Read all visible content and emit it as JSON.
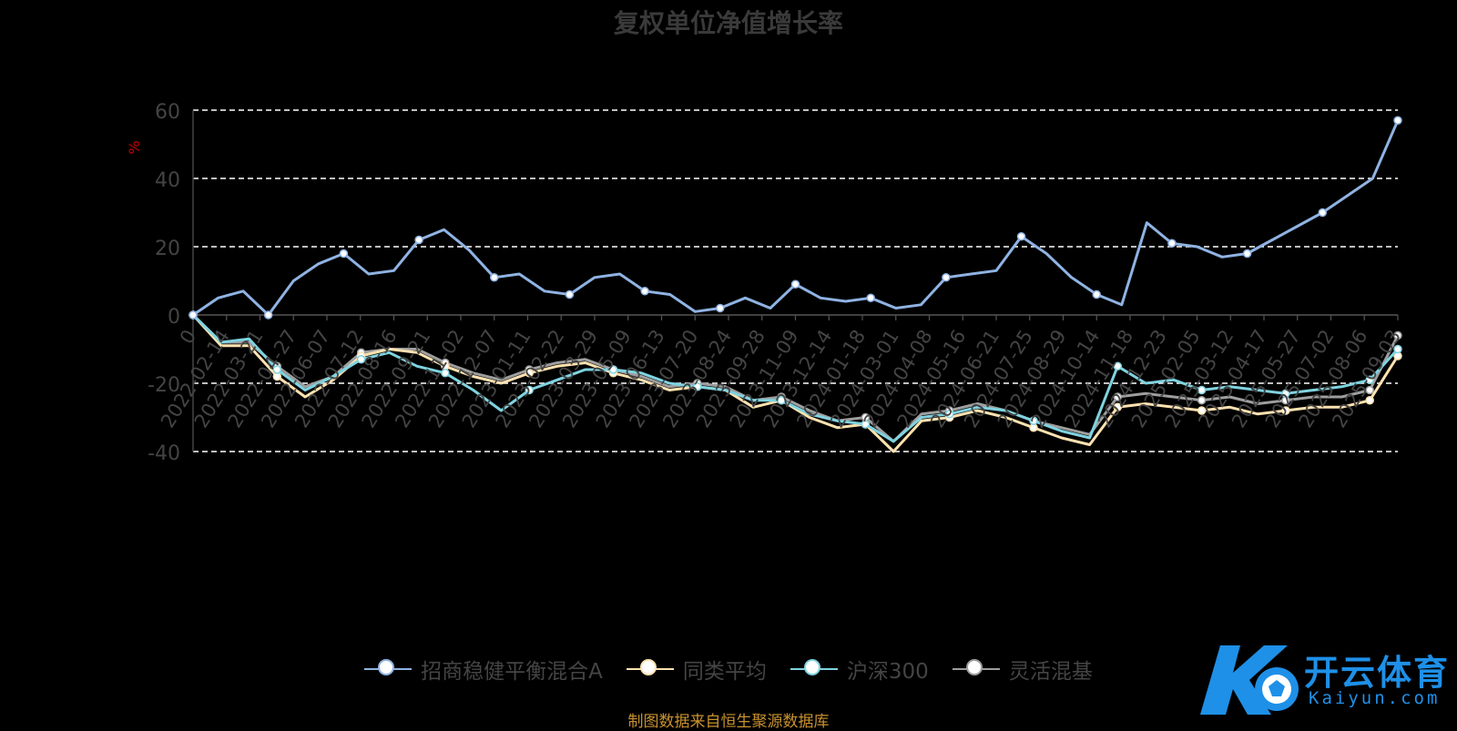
{
  "title": "复权单位净值增长率",
  "source_note": "制图数据来自恒生聚源数据库",
  "logo": {
    "text": "开云体育",
    "sub": "Kaiyun.com"
  },
  "colors": {
    "fund": "#8fb3e3",
    "peer_avg": "#ffe2b0",
    "hs300": "#7fd3e0",
    "flexible": "#9e9e9e",
    "axis_text": "#444444",
    "unit": "#cc0000"
  },
  "chart_data": {
    "type": "line",
    "title": "复权单位净值增长率",
    "ylabel": "%",
    "ylim": [
      -40,
      60
    ],
    "yticks": [
      -40,
      -20,
      0,
      20,
      40,
      60
    ],
    "grid": true,
    "legend_position": "bottom",
    "x_tick_labels": [
      "0",
      "2022-02-14",
      "2022-03-21",
      "2022-04-27",
      "2022-06-07",
      "2022-07-12",
      "2022-08-16",
      "2022-09-21",
      "2022-11-02",
      "2022-12-07",
      "2023-01-11",
      "2023-02-22",
      "2023-03-29",
      "2023-05-09",
      "2023-06-13",
      "2023-07-20",
      "2023-08-24",
      "2023-09-28",
      "2023-11-09",
      "2023-12-14",
      "2024-01-18",
      "2024-03-01",
      "2024-04-08",
      "2024-05-16",
      "2024-06-21",
      "2024-07-25",
      "2024-08-29",
      "2024-10-14",
      "2024-11-18",
      "2024-12-23",
      "2025-02-05",
      "2025-03-12",
      "2025-04-17",
      "2025-05-27",
      "2025-07-02",
      "2025-08-06",
      "2025-09-03"
    ],
    "series": [
      {
        "name": "招商稳健平衡混合A",
        "color_key": "fund",
        "values": [
          0,
          5,
          7,
          0,
          10,
          15,
          18,
          12,
          13,
          22,
          25,
          19,
          11,
          12,
          7,
          6,
          11,
          12,
          7,
          6,
          1,
          2,
          5,
          2,
          9,
          5,
          4,
          5,
          2,
          3,
          11,
          12,
          13,
          23,
          18,
          11,
          6,
          3,
          27,
          21,
          20,
          17,
          18,
          22,
          26,
          30,
          35,
          40,
          57
        ]
      },
      {
        "name": "同类平均",
        "color_key": "peer_avg",
        "values": [
          0,
          -9,
          -9,
          -18,
          -24,
          -19,
          -12,
          -10,
          -11,
          -15,
          -18,
          -20,
          -17,
          -15,
          -14,
          -17,
          -19,
          -22,
          -21,
          -22,
          -27,
          -25,
          -30,
          -33,
          -32,
          -40,
          -31,
          -30,
          -28,
          -30,
          -33,
          -36,
          -38,
          -27,
          -26,
          -27,
          -28,
          -27,
          -29,
          -28,
          -27,
          -27,
          -25,
          -12
        ]
      },
      {
        "name": "沪深300",
        "color_key": "hs300",
        "values": [
          0,
          -8,
          -7,
          -16,
          -22,
          -18,
          -13,
          -11,
          -15,
          -17,
          -22,
          -28,
          -22,
          -19,
          -16,
          -16,
          -17,
          -20,
          -21,
          -22,
          -25,
          -25,
          -29,
          -31,
          -32,
          -37,
          -30,
          -29,
          -27,
          -28,
          -31,
          -34,
          -36,
          -15,
          -20,
          -19,
          -22,
          -21,
          -22,
          -23,
          -22,
          -21,
          -19,
          -10
        ]
      },
      {
        "name": "灵活混基",
        "color_key": "flexible",
        "values": [
          0,
          -8,
          -8,
          -15,
          -21,
          -18,
          -11,
          -10,
          -10,
          -14,
          -17,
          -19,
          -16,
          -14,
          -13,
          -16,
          -18,
          -21,
          -20,
          -21,
          -25,
          -24,
          -28,
          -31,
          -30,
          -37,
          -29,
          -28,
          -26,
          -28,
          -31,
          -33,
          -35,
          -24,
          -23,
          -24,
          -25,
          -24,
          -26,
          -25,
          -24,
          -24,
          -22,
          -6
        ]
      }
    ]
  }
}
